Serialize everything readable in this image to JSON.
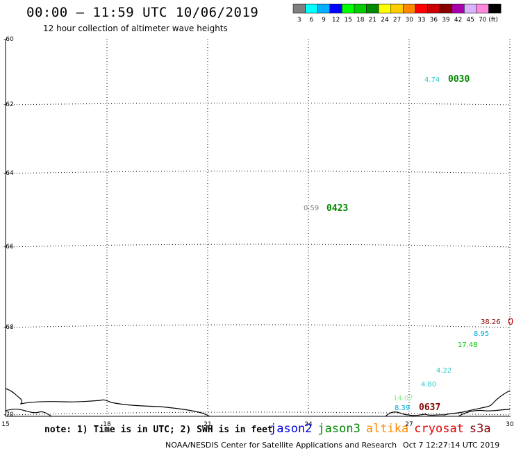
{
  "header": {
    "title": "00:00 — 11:59 UTC 10/06/2019",
    "subtitle": "12 hour collection of altimeter wave heights"
  },
  "colorbar": {
    "unit": "(ft)",
    "bins": [
      {
        "label": "3",
        "color": "#7f7f7f"
      },
      {
        "label": "6",
        "color": "#00ffff"
      },
      {
        "label": "9",
        "color": "#00b0ff"
      },
      {
        "label": "12",
        "color": "#0000ff"
      },
      {
        "label": "15",
        "color": "#00ff00"
      },
      {
        "label": "18",
        "color": "#00cc00"
      },
      {
        "label": "21",
        "color": "#008800"
      },
      {
        "label": "24",
        "color": "#ffff00"
      },
      {
        "label": "27",
        "color": "#ffcc00"
      },
      {
        "label": "30",
        "color": "#ff8800"
      },
      {
        "label": "33",
        "color": "#ff0000"
      },
      {
        "label": "36",
        "color": "#cc0000"
      },
      {
        "label": "39",
        "color": "#880000"
      },
      {
        "label": "42",
        "color": "#aa00aa"
      },
      {
        "label": "45",
        "color": "#d8b4ff"
      },
      {
        "label": "70",
        "color": "#ff88dd"
      },
      {
        "label": "",
        "color": "#000000"
      }
    ]
  },
  "axes": {
    "lon_ticks": [
      "15",
      "18",
      "21",
      "24",
      "27",
      "30"
    ],
    "lat_ticks": [
      "-60",
      "-62",
      "-64",
      "-66",
      "-68",
      "-70"
    ]
  },
  "observations": [
    {
      "text": "4.74",
      "color": "#22cccc"
    },
    {
      "text": "0030",
      "color": "#008800",
      "bold": true
    },
    {
      "text": "0.59",
      "color": "#7f7f7f"
    },
    {
      "text": "0423",
      "color": "#008800",
      "bold": true
    },
    {
      "text": "38.26",
      "color": "#880000"
    },
    {
      "text": "0",
      "color": "#cc0000"
    },
    {
      "text": "8.95",
      "color": "#00aadd"
    },
    {
      "text": "17.48",
      "color": "#00cc00"
    },
    {
      "text": "4.22",
      "color": "#22cccc"
    },
    {
      "text": "4.80",
      "color": "#22cccc"
    },
    {
      "text": "14.07",
      "color": "#88ee88"
    },
    {
      "text": "8.39",
      "color": "#00aadd"
    },
    {
      "text": "0637",
      "color": "#880000",
      "bold": true
    }
  ],
  "footer": {
    "note": "note: 1) Time is in UTC; 2) SWH is in feet",
    "satellites": [
      {
        "name": "jason2",
        "color": "#0000dd"
      },
      {
        "name": "jason3",
        "color": "#008800"
      },
      {
        "name": "altika",
        "color": "#ff8800"
      },
      {
        "name": "cryosat",
        "color": "#dd0000"
      },
      {
        "name": "s3a",
        "color": "#880000"
      }
    ],
    "credit": "NOAA/NESDIS Center for Satellite Applications and Research",
    "timestamp": "Oct  7 12:27:14 UTC 2019"
  }
}
